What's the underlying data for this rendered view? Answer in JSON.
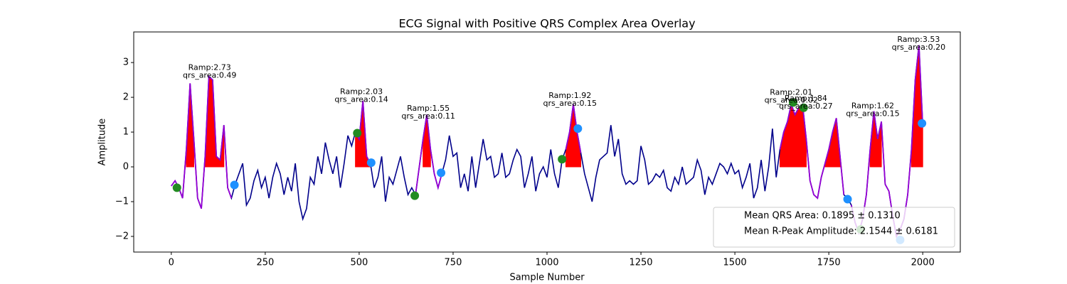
{
  "chart_data": {
    "type": "line",
    "title": "ECG Signal with Positive QRS Complex Area Overlay",
    "xlabel": "Sample Number",
    "ylabel": "Amplitude",
    "xlim": [
      -100,
      2100
    ],
    "ylim": [
      -2.45,
      3.88
    ],
    "xticks": [
      0,
      250,
      500,
      750,
      1000,
      1250,
      1500,
      1750,
      2000
    ],
    "yticks": [
      {
        "value": -2,
        "label": "−2"
      },
      {
        "value": -1,
        "label": "−1"
      },
      0,
      1,
      2,
      3
    ],
    "x": [
      0,
      10,
      20,
      30,
      40,
      50,
      60,
      70,
      80,
      90,
      100,
      110,
      120,
      130,
      140,
      150,
      160,
      170,
      180,
      190,
      200,
      210,
      220,
      230,
      240,
      250,
      260,
      270,
      280,
      290,
      300,
      310,
      320,
      330,
      340,
      350,
      360,
      370,
      380,
      390,
      400,
      410,
      420,
      430,
      440,
      450,
      460,
      470,
      480,
      490,
      500,
      510,
      520,
      530,
      540,
      550,
      560,
      570,
      580,
      590,
      600,
      610,
      620,
      630,
      640,
      650,
      660,
      670,
      680,
      690,
      700,
      710,
      720,
      730,
      740,
      750,
      760,
      770,
      780,
      790,
      800,
      810,
      820,
      830,
      840,
      850,
      860,
      870,
      880,
      890,
      900,
      910,
      920,
      930,
      940,
      950,
      960,
      970,
      980,
      990,
      1000,
      1010,
      1020,
      1030,
      1040,
      1050,
      1060,
      1070,
      1080,
      1090,
      1100,
      1110,
      1120,
      1130,
      1140,
      1150,
      1160,
      1170,
      1180,
      1190,
      1200,
      1210,
      1220,
      1230,
      1240,
      1250,
      1260,
      1270,
      1280,
      1290,
      1300,
      1310,
      1320,
      1330,
      1340,
      1350,
      1360,
      1370,
      1380,
      1390,
      1400,
      1410,
      1420,
      1430,
      1440,
      1450,
      1460,
      1470,
      1480,
      1490,
      1500,
      1510,
      1520,
      1530,
      1540,
      1550,
      1560,
      1570,
      1580,
      1590,
      1600,
      1610,
      1620,
      1630,
      1640,
      1650,
      1660,
      1670,
      1680,
      1690,
      1700,
      1710,
      1720,
      1730,
      1740,
      1750,
      1760,
      1770,
      1780,
      1790,
      1800,
      1810,
      1820,
      1830,
      1840,
      1850,
      1860,
      1870,
      1880,
      1890,
      1900,
      1910,
      1920,
      1930,
      1940,
      1950,
      1960,
      1970,
      1980,
      1990,
      2000
    ],
    "signal": {
      "color": "#00008b",
      "values": [
        -0.55,
        -0.4,
        -0.6,
        -0.9,
        0.5,
        2.4,
        0.8,
        -0.9,
        -1.2,
        0.3,
        2.6,
        2.5,
        0.3,
        0.2,
        1.2,
        -0.6,
        -0.9,
        -0.5,
        -0.2,
        0.1,
        -1.1,
        -0.9,
        -0.4,
        -0.1,
        -0.6,
        -0.3,
        -0.9,
        -0.3,
        0.1,
        -0.2,
        -0.8,
        -0.3,
        -0.7,
        0.1,
        -1.0,
        -1.5,
        -1.2,
        -0.3,
        -0.5,
        0.3,
        -0.2,
        0.7,
        0.2,
        -0.2,
        0.3,
        -0.6,
        0.1,
        0.9,
        0.6,
        1.0,
        0.8,
        1.9,
        0.3,
        0.1,
        -0.6,
        -0.3,
        0.3,
        -1.0,
        -0.3,
        -0.5,
        -0.1,
        0.3,
        -0.3,
        -0.8,
        -0.6,
        -0.8,
        0.0,
        0.8,
        1.5,
        0.5,
        -0.2,
        -0.6,
        -0.2,
        0.2,
        0.9,
        0.3,
        0.4,
        -0.6,
        -0.2,
        -0.7,
        0.3,
        -0.6,
        0.1,
        0.8,
        0.2,
        0.3,
        -0.3,
        -0.2,
        0.4,
        -0.3,
        -0.2,
        0.2,
        0.5,
        0.3,
        -0.6,
        -0.2,
        0.3,
        -0.7,
        -0.2,
        0.0,
        -0.3,
        0.5,
        -0.2,
        -0.6,
        0.2,
        0.5,
        1.0,
        1.8,
        1.0,
        0.4,
        -0.2,
        -0.6,
        -1.0,
        -0.3,
        0.2,
        0.3,
        0.4,
        1.2,
        0.3,
        0.8,
        -0.2,
        -0.5,
        -0.4,
        -0.5,
        -0.4,
        0.6,
        0.2,
        -0.5,
        -0.4,
        -0.2,
        -0.3,
        -0.1,
        -0.6,
        -0.7,
        -0.3,
        -0.5,
        0.0,
        -0.5,
        -0.4,
        -0.3,
        0.2,
        -0.1,
        -0.8,
        -0.3,
        -0.5,
        -0.2,
        0.1,
        0.0,
        -0.2,
        0.1,
        -0.2,
        -0.1,
        -0.6,
        -0.3,
        0.1,
        -0.9,
        -0.6,
        0.2,
        -0.7,
        0.0,
        1.1,
        -0.3,
        0.5,
        1.0,
        1.3,
        1.8,
        1.5,
        1.7,
        1.8,
        0.8,
        -0.4,
        -0.8,
        -0.9,
        -0.3,
        0.1,
        0.5,
        1.0,
        1.4,
        0.3,
        -0.8,
        -0.9,
        -1.1,
        -1.6,
        -1.9,
        -1.5,
        -0.8,
        0.5,
        1.6,
        0.8,
        1.3,
        -0.5,
        -0.7,
        -1.4,
        -2.0,
        -1.8,
        -1.5,
        -0.8,
        0.5,
        2.5,
        3.5,
        1.2
      ]
    },
    "qrs_color": "#9400d3",
    "fill_color": "#ff0000",
    "qrs_windows": [
      [
        0,
        160
      ],
      [
        490,
        530
      ],
      [
        650,
        720
      ],
      [
        1050,
        1090
      ],
      [
        1620,
        1790
      ],
      [
        1810,
        2000
      ]
    ],
    "onsets": {
      "color": "#228b22",
      "x": [
        15,
        495,
        648,
        1040,
        1655,
        1683,
        1835
      ],
      "y": [
        -0.6,
        0.97,
        -0.83,
        0.22,
        1.85,
        1.7,
        -1.8
      ]
    },
    "offsets": {
      "color": "#1e90ff",
      "x": [
        168,
        532,
        718,
        1082,
        1800,
        1940,
        1998
      ],
      "y": [
        -0.52,
        0.12,
        -0.17,
        1.1,
        -0.93,
        -2.1,
        1.25
      ]
    },
    "annotations": [
      {
        "x": 102,
        "y": 2.73,
        "lines": [
          "Ramp:2.73",
          "qrs_area:0.49"
        ]
      },
      {
        "x": 506,
        "y": 2.03,
        "lines": [
          "Ramp:2.03",
          "qrs_area:0.14"
        ]
      },
      {
        "x": 684,
        "y": 1.55,
        "lines": [
          "Ramp:1.55",
          "qrs_area:0.11"
        ]
      },
      {
        "x": 1061,
        "y": 1.92,
        "lines": [
          "Ramp:1.92",
          "qrs_area:0.15"
        ]
      },
      {
        "x": 1650,
        "y": 2.01,
        "lines": [
          "Ramp:2.01",
          "qrs_area:0.02"
        ]
      },
      {
        "x": 1689,
        "y": 1.84,
        "lines": [
          "Ramp:1.84",
          "qrs_area:0.27"
        ]
      },
      {
        "x": 1867,
        "y": 1.62,
        "lines": [
          "Ramp:1.62",
          "qrs_area:0.15"
        ]
      },
      {
        "x": 1989,
        "y": 3.53,
        "lines": [
          "Ramp:3.53",
          "qrs_area:0.20"
        ]
      }
    ],
    "legend": {
      "loc": "lower right",
      "entries": [
        "Mean QRS Area: 0.1895 ± 0.1310",
        "Mean R-Peak Amplitude: 2.1544 ± 0.6181"
      ]
    }
  }
}
